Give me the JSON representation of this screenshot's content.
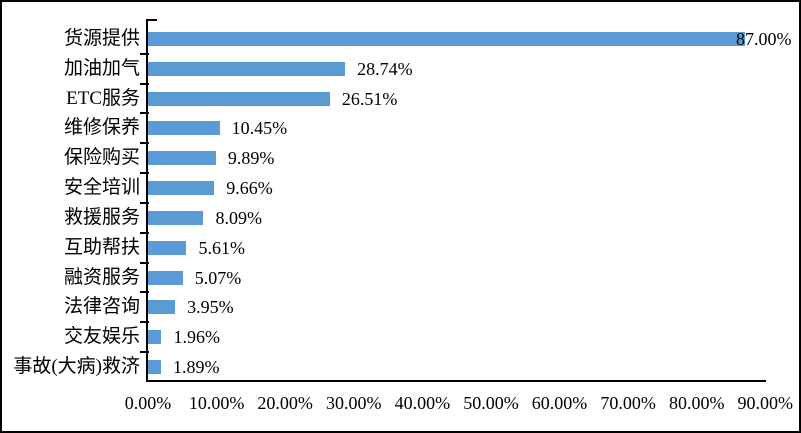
{
  "chart_data": {
    "type": "bar",
    "orientation": "horizontal",
    "categories": [
      "货源提供",
      "加油加气",
      "ETC服务",
      "维修保养",
      "保险购买",
      "安全培训",
      "救援服务",
      "互助帮扶",
      "融资服务",
      "法律咨询",
      "交友娱乐",
      "事故(大病)救济"
    ],
    "values": [
      87.0,
      28.74,
      26.51,
      10.45,
      9.89,
      9.66,
      8.09,
      5.61,
      5.07,
      3.95,
      1.96,
      1.89
    ],
    "value_labels": [
      "87.00%",
      "28.74%",
      "26.51%",
      "10.45%",
      "9.89%",
      "9.66%",
      "8.09%",
      "5.61%",
      "5.07%",
      "3.95%",
      "1.96%",
      "1.89%"
    ],
    "x_axis": {
      "min": 0,
      "max": 90,
      "step": 10,
      "tick_labels": [
        "0.00%",
        "10.00%",
        "20.00%",
        "30.00%",
        "40.00%",
        "50.00%",
        "60.00%",
        "70.00%",
        "80.00%",
        "90.00%"
      ]
    },
    "bar_color": "#5B9BD5",
    "axis_color": "#000000",
    "text_color": "#000000",
    "grid": false,
    "legend": null
  }
}
